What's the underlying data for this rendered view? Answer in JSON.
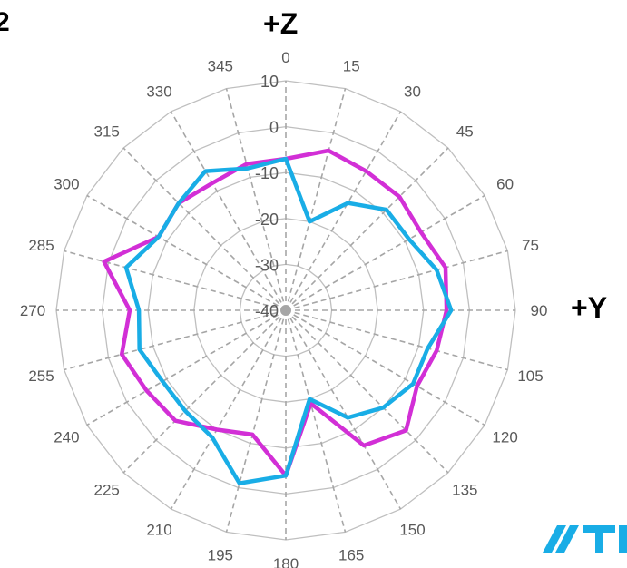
{
  "corner_text": "2",
  "chart_data": {
    "type": "radar",
    "axis_labels": {
      "top": "+Z",
      "right": "+Y"
    },
    "angles": [
      0,
      15,
      30,
      45,
      60,
      75,
      90,
      105,
      120,
      135,
      150,
      165,
      180,
      195,
      210,
      225,
      240,
      255,
      270,
      285,
      300,
      315,
      330,
      345
    ],
    "angle_labels": [
      "0",
      "15",
      "30",
      "45",
      "60",
      "75",
      "90",
      "105",
      "120",
      "135",
      "150",
      "165",
      "180",
      "195",
      "210",
      "225",
      "240",
      "255",
      "270",
      "285",
      "300",
      "315",
      "330",
      "345"
    ],
    "r_ticks": [
      -40,
      -30,
      -20,
      -10,
      0,
      10
    ],
    "r_tick_labels": [
      "-40",
      "-30",
      "-20",
      "-10",
      "0",
      "10"
    ],
    "rlim": [
      -40,
      10
    ],
    "grid": true,
    "series": [
      {
        "color": "#d22fd6",
        "values": [
          -7,
          -4,
          -5,
          -5,
          -6,
          -4,
          -5,
          -6,
          -7,
          -3,
          -6,
          -19,
          -4,
          -12,
          -10,
          -6,
          -5,
          -3,
          -6,
          1,
          -8,
          -7,
          -8,
          -7
        ]
      },
      {
        "color": "#19ade6",
        "values": [
          -7,
          -20,
          -13,
          -9,
          -9,
          -6,
          -4,
          -8,
          -8,
          -10,
          -13,
          -20,
          -4,
          -1,
          -8,
          -9,
          -9,
          -7,
          -8,
          -4,
          -8,
          -7,
          -5,
          -8
        ]
      }
    ]
  },
  "logo": {
    "color": "#19ade6",
    "name": "partial-brand-logo"
  }
}
